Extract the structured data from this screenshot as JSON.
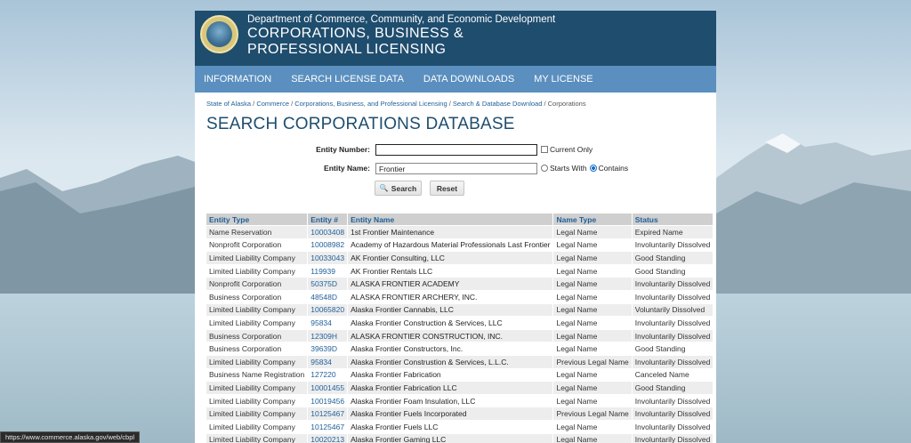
{
  "colors": {
    "header_bg": "#1f4d6e",
    "nav_bg": "#5a8fbf",
    "link": "#1f5f99",
    "title": "#1f4d6e"
  },
  "header": {
    "dept": "Department of Commerce, Community, and Economic Development",
    "title_line1": "CORPORATIONS, BUSINESS &",
    "title_line2": "PROFESSIONAL LICENSING",
    "seal_icon": "alaska-state-seal"
  },
  "nav": {
    "items": [
      "INFORMATION",
      "SEARCH LICENSE DATA",
      "DATA DOWNLOADS",
      "MY LICENSE"
    ]
  },
  "breadcrumb": {
    "items": [
      "State of Alaska",
      "Commerce",
      "Corporations, Business, and Professional Licensing",
      "Search & Database Download"
    ],
    "current": "Corporations",
    "separator": " / "
  },
  "page_title": "SEARCH CORPORATIONS DATABASE",
  "form": {
    "entity_number_label": "Entity Number:",
    "entity_number_value": "",
    "current_only_label": "Current Only",
    "entity_name_label": "Entity Name:",
    "entity_name_value": "Frontier",
    "starts_with_label": "Starts With",
    "contains_label": "Contains",
    "search_label": "Search",
    "reset_label": "Reset"
  },
  "table": {
    "headers": [
      "Entity Type",
      "Entity #",
      "Entity Name",
      "Name Type",
      "Status"
    ],
    "rows": [
      [
        "Name Reservation",
        "10003408",
        "1st Frontier Maintenance",
        "Legal Name",
        "Expired Name"
      ],
      [
        "Nonprofit Corporation",
        "10008982",
        "Academy of Hazardous Material Professionals Last Frontier",
        "Legal Name",
        "Involuntarily Dissolved"
      ],
      [
        "Limited Liability Company",
        "10033043",
        "AK Frontier Consulting, LLC",
        "Legal Name",
        "Good Standing"
      ],
      [
        "Limited Liability Company",
        "119939",
        "AK Frontier Rentals LLC",
        "Legal Name",
        "Good Standing"
      ],
      [
        "Nonprofit Corporation",
        "50375D",
        "ALASKA FRONTIER ACADEMY",
        "Legal Name",
        "Involuntarily Dissolved"
      ],
      [
        "Business Corporation",
        "48548D",
        "ALASKA FRONTIER ARCHERY, INC.",
        "Legal Name",
        "Involuntarily Dissolved"
      ],
      [
        "Limited Liability Company",
        "10065820",
        "Alaska Frontier Cannabis, LLC",
        "Legal Name",
        "Voluntarily Dissolved"
      ],
      [
        "Limited Liability Company",
        "95834",
        "Alaska Frontier Construction & Services, LLC",
        "Legal Name",
        "Involuntarily Dissolved"
      ],
      [
        "Business Corporation",
        "12309H",
        "ALASKA FRONTIER CONSTRUCTION, INC.",
        "Legal Name",
        "Involuntarily Dissolved"
      ],
      [
        "Business Corporation",
        "39639D",
        "Alaska Frontier Constructors, Inc.",
        "Legal Name",
        "Good Standing"
      ],
      [
        "Limited Liability Company",
        "95834",
        "Alaska Frontier Construstion & Services, L.L.C.",
        "Previous Legal Name",
        "Involuntarily Dissolved"
      ],
      [
        "Business Name Registration",
        "127220",
        "Alaska Frontier Fabrication",
        "Legal Name",
        "Canceled Name"
      ],
      [
        "Limited Liability Company",
        "10001455",
        "Alaska Frontier Fabrication LLC",
        "Legal Name",
        "Good Standing"
      ],
      [
        "Limited Liability Company",
        "10019456",
        "Alaska Frontier Foam Insulation, LLC",
        "Legal Name",
        "Involuntarily Dissolved"
      ],
      [
        "Limited Liability Company",
        "10125467",
        "Alaska Frontier Fuels Incorporated",
        "Previous Legal Name",
        "Involuntarily Dissolved"
      ],
      [
        "Limited Liability Company",
        "10125467",
        "Alaska Frontier Fuels LLC",
        "Legal Name",
        "Involuntarily Dissolved"
      ],
      [
        "Limited Liability Company",
        "10020213",
        "Alaska Frontier Gaming LLC",
        "Legal Name",
        "Involuntarily Dissolved"
      ]
    ]
  },
  "status_bar": {
    "url": "https://www.commerce.alaska.gov/web/cbpl"
  }
}
